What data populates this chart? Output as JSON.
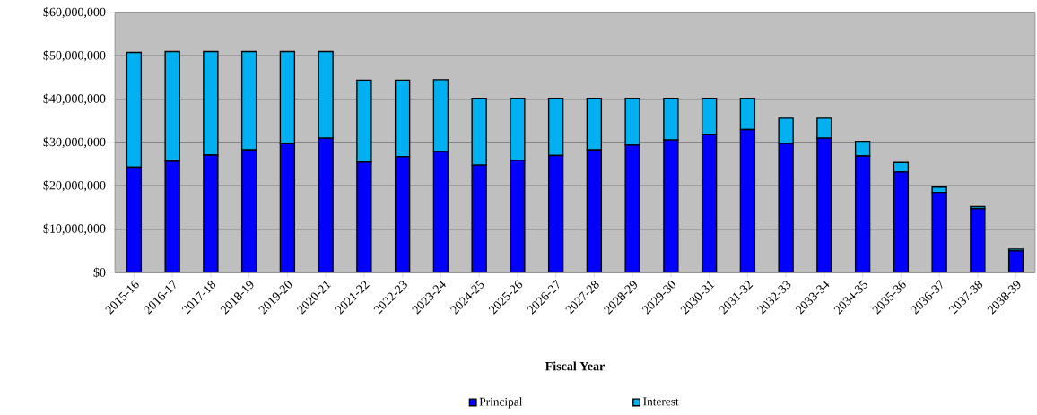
{
  "chart_data": {
    "type": "bar",
    "stacked": true,
    "xlabel": "Fiscal Year",
    "categories": [
      "2015-16",
      "2016-17",
      "2017-18",
      "2018-19",
      "2019-20",
      "2020-21",
      "2021-22",
      "2022-23",
      "2023-24",
      "2024-25",
      "2025-26",
      "2026-27",
      "2027-28",
      "2028-29",
      "2029-30",
      "2030-31",
      "2031-32",
      "2032-33",
      "2033-34",
      "2034-35",
      "2035-36",
      "2036-37",
      "2037-38",
      "2038-39"
    ],
    "series": [
      {
        "name": "Principal",
        "color": "#0000ff",
        "values": [
          24300000,
          25700000,
          27100000,
          28300000,
          29700000,
          31000000,
          25500000,
          26700000,
          27900000,
          24800000,
          25900000,
          27000000,
          28300000,
          29400000,
          30600000,
          31800000,
          33000000,
          29800000,
          31000000,
          26900000,
          23200000,
          18500000,
          14700000,
          5000000
        ]
      },
      {
        "name": "Interest",
        "color": "#00b0f0",
        "values": [
          26500000,
          25300000,
          23900000,
          22700000,
          21300000,
          20000000,
          18900000,
          17700000,
          16600000,
          15400000,
          14300000,
          13200000,
          11900000,
          10800000,
          9600000,
          8400000,
          7200000,
          5800000,
          4600000,
          3400000,
          2200000,
          1200000,
          500000,
          400000
        ]
      }
    ],
    "ylim": [
      0,
      60000000
    ],
    "yticks": [
      {
        "value": 0,
        "label": "$0"
      },
      {
        "value": 10000000,
        "label": "$10,000,000"
      },
      {
        "value": 20000000,
        "label": "$20,000,000"
      },
      {
        "value": 30000000,
        "label": "$30,000,000"
      },
      {
        "value": 40000000,
        "label": "$40,000,000"
      },
      {
        "value": 50000000,
        "label": "$50,000,000"
      },
      {
        "value": 60000000,
        "label": "$60,000,000"
      }
    ],
    "grid": "y",
    "legend": "bottom"
  }
}
